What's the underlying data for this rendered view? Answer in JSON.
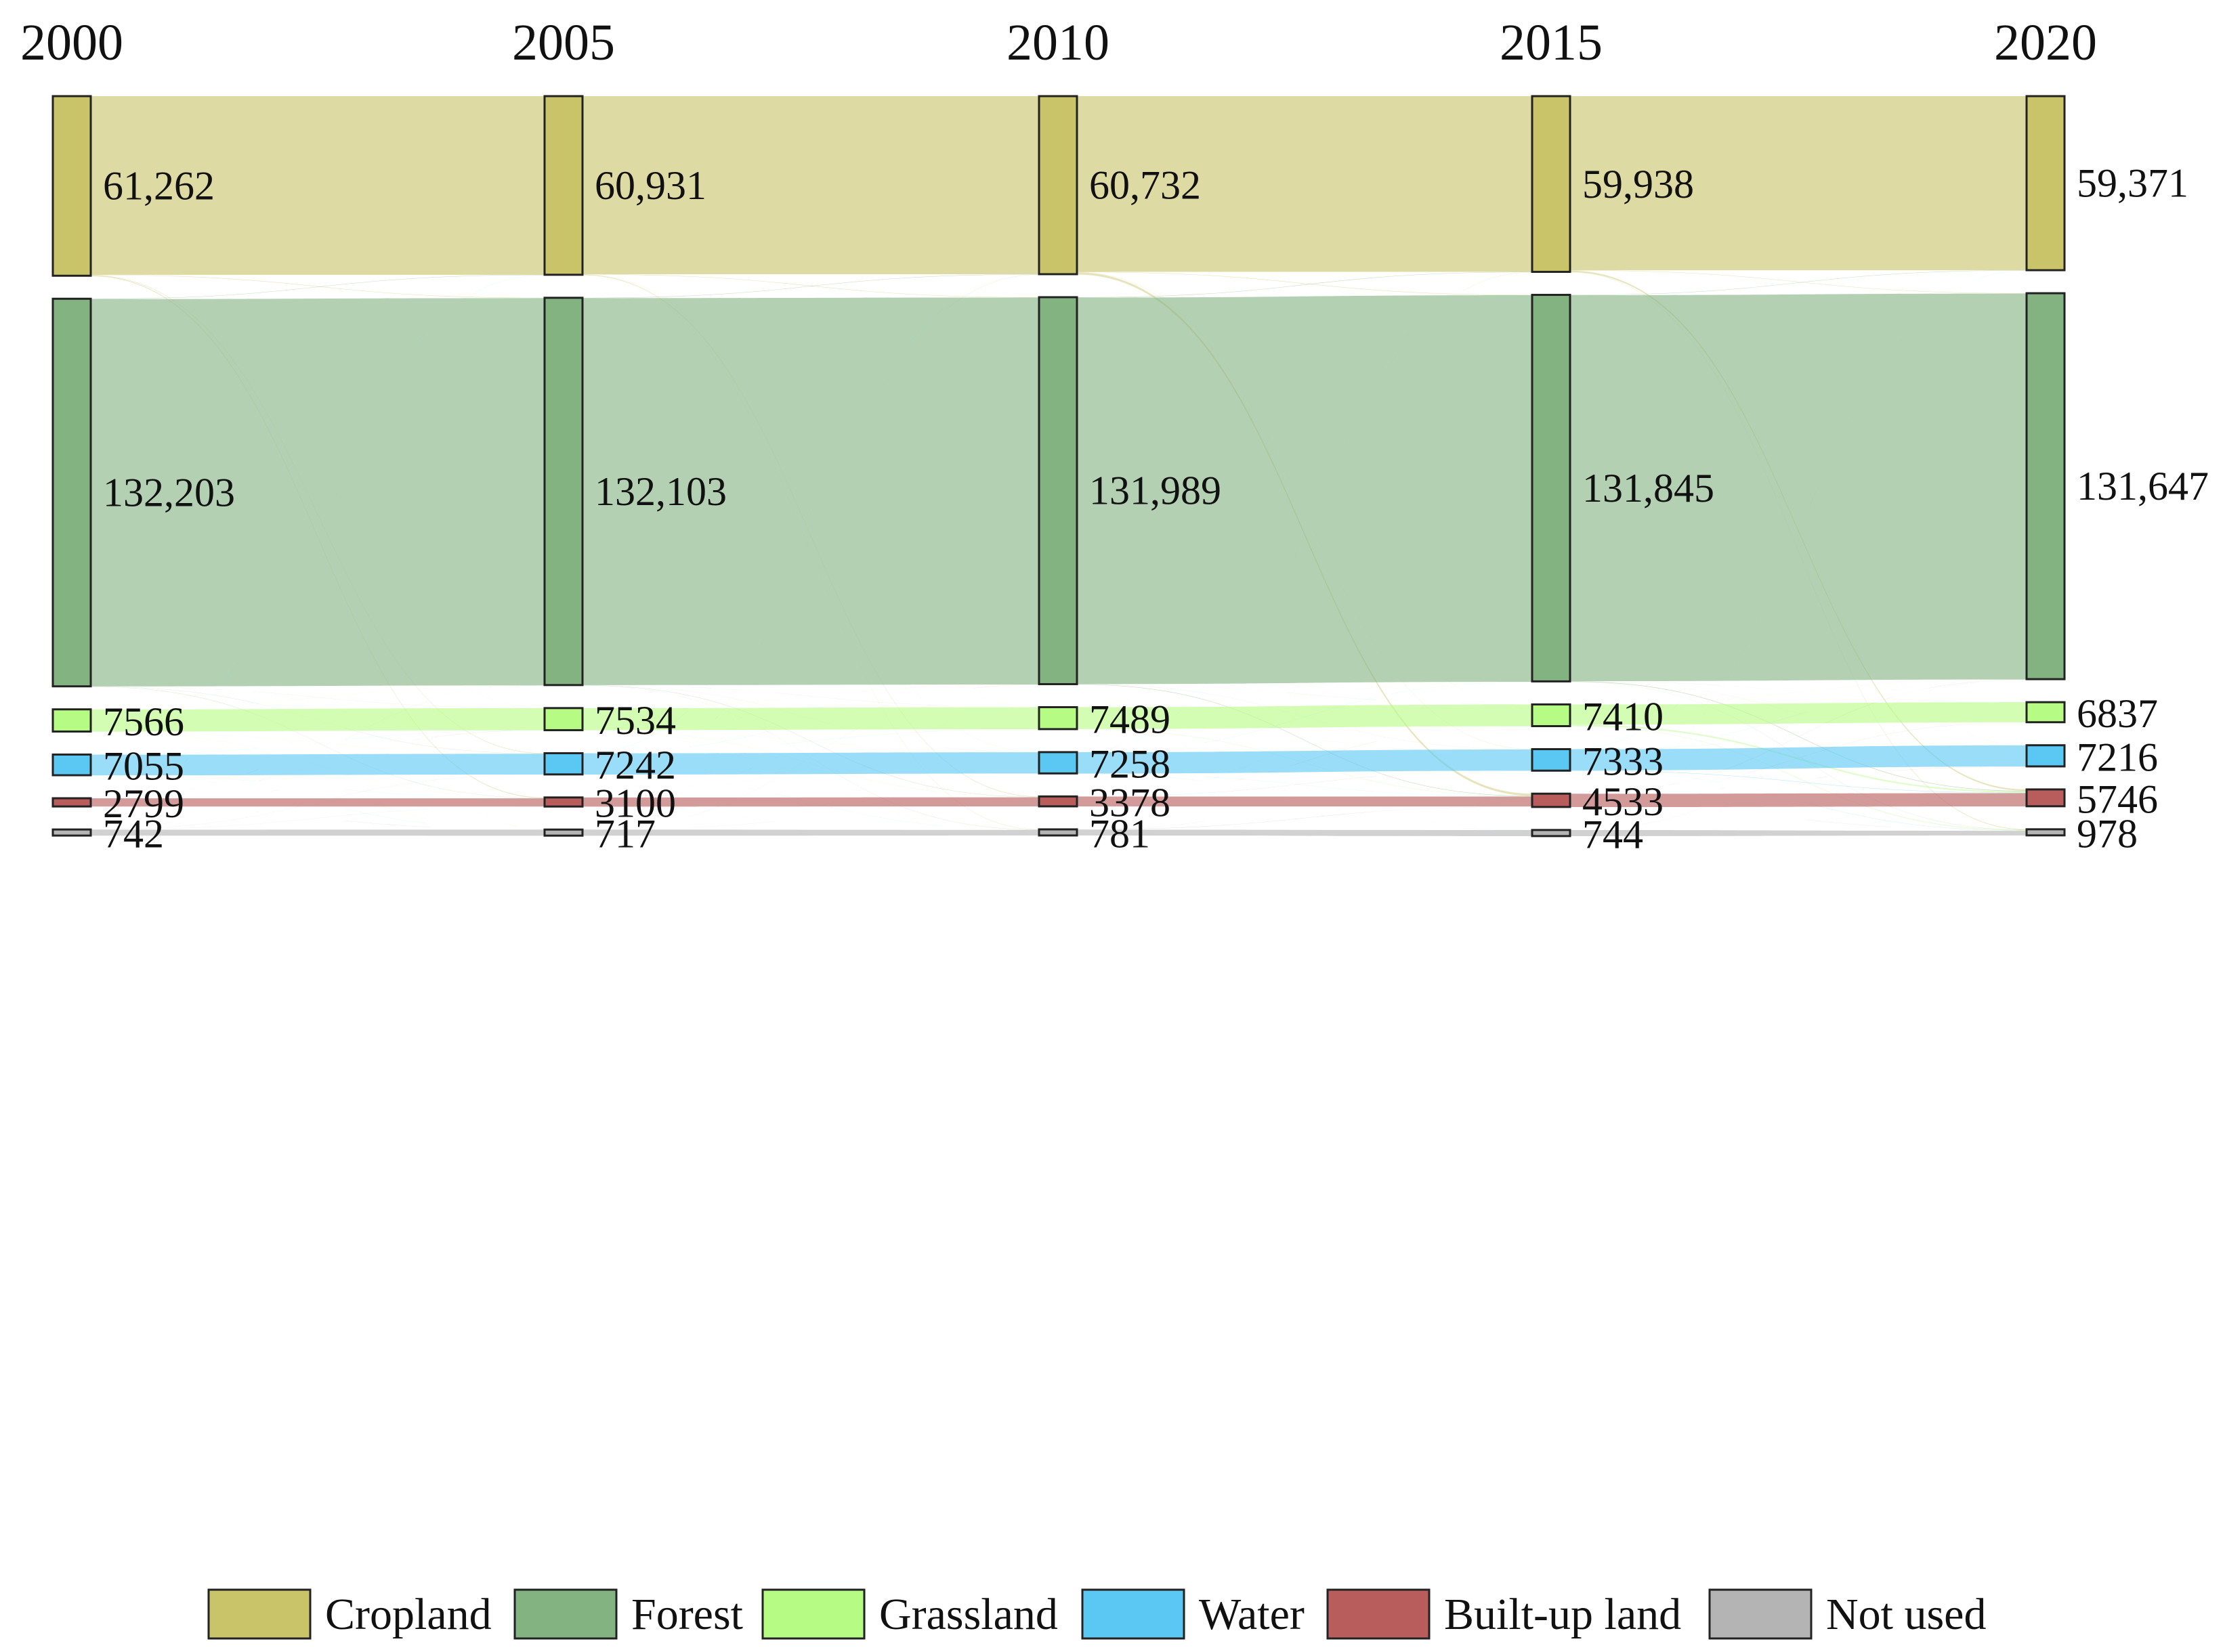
{
  "chart_data": {
    "type": "sankey",
    "title": "",
    "years": [
      "2000",
      "2005",
      "2010",
      "2015",
      "2020"
    ],
    "categories": [
      {
        "name": "Cropland",
        "color": "#c9c46a"
      },
      {
        "name": "Forest",
        "color": "#84b382"
      },
      {
        "name": "Grassland",
        "color": "#b6fb84"
      },
      {
        "name": "Water",
        "color": "#5bc8f3"
      },
      {
        "name": "Built-up land",
        "color": "#b85c5c"
      },
      {
        "name": "Not used",
        "color": "#b4b4b4"
      }
    ],
    "values": [
      [
        61262,
        132203,
        7566,
        7055,
        2799,
        742
      ],
      [
        60931,
        132103,
        7534,
        7242,
        3100,
        717
      ],
      [
        60732,
        131989,
        7489,
        7258,
        3378,
        781
      ],
      [
        59938,
        131845,
        7410,
        7333,
        4533,
        744
      ],
      [
        59371,
        131647,
        6837,
        7216,
        5746,
        978
      ]
    ],
    "value_labels": [
      [
        "61,262",
        "132,203",
        "7566",
        "7055",
        "2799",
        "742"
      ],
      [
        "60,931",
        "132,103",
        "7534",
        "7242",
        "3100",
        "717"
      ],
      [
        "60,732",
        "131,989",
        "7489",
        "7258",
        "3378",
        "781"
      ],
      [
        "59,938",
        "131,845",
        "7410",
        "7333",
        "4533",
        "744"
      ],
      [
        "59,371",
        "131,647",
        "6837",
        "7216",
        "5746",
        "978"
      ]
    ],
    "legend": [
      "Cropland",
      "Forest",
      "Grassland",
      "Water",
      "Built-up land",
      "Not used"
    ],
    "legend_position": "bottom"
  }
}
